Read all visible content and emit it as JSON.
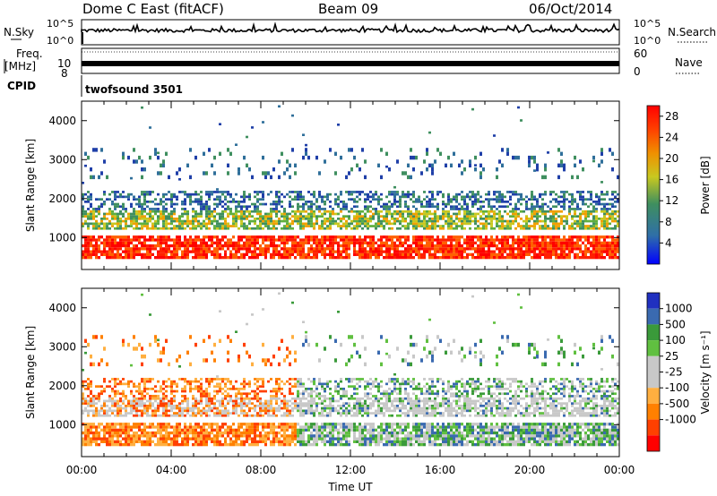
{
  "header": {
    "station": "Dome C East (fitACF)",
    "beam": "Beam 09",
    "date": "06/Oct/2014"
  },
  "meta_panels": {
    "nsky_label": "N.Sky",
    "nsky_ticks": [
      "10^5",
      "10^0"
    ],
    "nsearch_label": "N.Search",
    "nsearch_ticks": [
      "10^5",
      "10^0"
    ],
    "freq_label": "Freq.",
    "freq_unit": "[MHz]",
    "freq_ticks": [
      "10",
      "8"
    ],
    "nave_label": "Nave",
    "nave_ticks": [
      "60",
      "0"
    ],
    "cpid_label": "CPID",
    "cpid_value": "twofsound 3501"
  },
  "chart_data": [
    {
      "type": "heatmap",
      "panel": "power",
      "ylabel": "Slant Range [km]",
      "ylim": [
        180,
        4500
      ],
      "yticks": [
        "4000",
        "3000",
        "2000",
        "1000"
      ],
      "colorbar_label": "Power [dB]",
      "colorbar_ticks": [
        "28",
        "24",
        "20",
        "16",
        "12",
        "8",
        "4"
      ],
      "colorscale": [
        "#0000ff",
        "#1f3fa8",
        "#2f6f9a",
        "#3f8f5f",
        "#5faf3f",
        "#c8c820",
        "#f0a000",
        "#ff6000",
        "#ff2000",
        "#ff0000"
      ],
      "bands": [
        {
          "range_km": [
            450,
            1050
          ],
          "level": "high"
        },
        {
          "range_km": [
            1200,
            1700
          ],
          "level": "medium"
        },
        {
          "range_km": [
            1700,
            2200
          ],
          "level": "low"
        },
        {
          "range_km": [
            2500,
            3300
          ],
          "level": "low-sparse"
        }
      ]
    },
    {
      "type": "heatmap",
      "panel": "velocity",
      "ylabel": "Slant Range [km]",
      "ylim": [
        180,
        4500
      ],
      "yticks": [
        "4000",
        "3000",
        "2000",
        "1000"
      ],
      "xlabel": "Time UT",
      "xticks": [
        "00:00",
        "04:00",
        "08:00",
        "12:00",
        "16:00",
        "20:00",
        "00:00"
      ],
      "colorbar_label": "Velocity [m s⁻¹]",
      "colorbar_ticks": [
        "1000",
        "500",
        "100",
        "25",
        "-25",
        "-100",
        "-500",
        "-1000"
      ],
      "colorscale": [
        "#ff0000",
        "#ff4000",
        "#ff8000",
        "#ffaf40",
        "#c8c8c8",
        "#c8c8c8",
        "#60c040",
        "#3a9a3a",
        "#3a6ab0",
        "#2030c0"
      ],
      "ground_scatter_color": "#c8c8c8"
    }
  ]
}
